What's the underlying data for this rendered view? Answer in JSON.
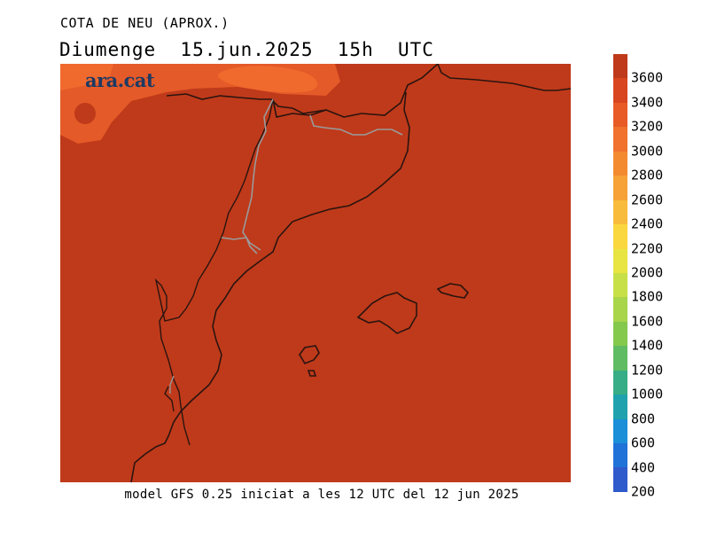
{
  "title": "COTA DE NEU (APROX.)",
  "subtitle": "Diumenge  15.jun.2025  15h  UTC",
  "watermark": "ara.cat",
  "footer": "model GFS 0.25 iniciat a les 12 UTC del 12 jun 2025",
  "map": {
    "fill_color": "#bf3a1a",
    "higher_color": "#e45a28",
    "peak_color": "#f06a2e",
    "coast_color": "#2a1410",
    "border_color": "#9a9a9a"
  },
  "legend": {
    "labels": [
      "3600",
      "3400",
      "3200",
      "3000",
      "2800",
      "2600",
      "2400",
      "2200",
      "2000",
      "1800",
      "1600",
      "1400",
      "1200",
      "1000",
      "800",
      "600",
      "400",
      "200"
    ],
    "colors": [
      "#bf3a1a",
      "#d8461f",
      "#e85b25",
      "#f0722c",
      "#f38a30",
      "#f6a236",
      "#f9bb3b",
      "#fbd73f",
      "#e8e442",
      "#c8e047",
      "#a8d54a",
      "#84c94c",
      "#5fbc63",
      "#36ad86",
      "#1fa2ad",
      "#1b8fd8",
      "#1f72d8",
      "#2f5acb"
    ]
  }
}
